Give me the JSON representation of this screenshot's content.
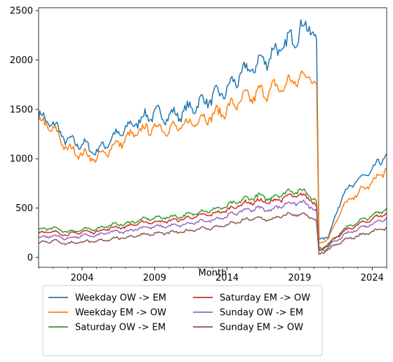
{
  "chart_data": {
    "type": "line",
    "title": "",
    "xlabel": "Month",
    "ylabel": "",
    "x_range": [
      "2001-01",
      "2025-01"
    ],
    "ylim": [
      -100,
      2530
    ],
    "grid": false,
    "legend_position": "below",
    "x_ticks": [
      {
        "label": "2004",
        "value": "2004-01"
      },
      {
        "label": "2009",
        "value": "2009-01"
      },
      {
        "label": "2014",
        "value": "2014-01"
      },
      {
        "label": "2019",
        "value": "2019-01"
      },
      {
        "label": "2024",
        "value": "2024-01"
      }
    ],
    "y_ticks": [
      0,
      500,
      1000,
      1500,
      2000,
      2500
    ],
    "series": [
      {
        "name": "Weekday OW -> EM",
        "color": "#1f77b4",
        "points": [
          [
            "2001-01",
            1430
          ],
          [
            "2002-01",
            1350
          ],
          [
            "2003-01",
            1180
          ],
          [
            "2004-01",
            1150
          ],
          [
            "2005-01",
            1070
          ],
          [
            "2006-01",
            1200
          ],
          [
            "2007-01",
            1300
          ],
          [
            "2008-01",
            1400
          ],
          [
            "2009-01",
            1460
          ],
          [
            "2010-01",
            1430
          ],
          [
            "2011-01",
            1470
          ],
          [
            "2012-01",
            1560
          ],
          [
            "2013-01",
            1620
          ],
          [
            "2014-01",
            1700
          ],
          [
            "2015-01",
            1860
          ],
          [
            "2016-01",
            1950
          ],
          [
            "2017-01",
            2050
          ],
          [
            "2018-01",
            2150
          ],
          [
            "2019-01",
            2300
          ],
          [
            "2019-10",
            2350
          ],
          [
            "2020-03",
            2200
          ],
          [
            "2020-05",
            180
          ],
          [
            "2021-01",
            220
          ],
          [
            "2022-01",
            650
          ],
          [
            "2023-01",
            780
          ],
          [
            "2024-01",
            880
          ],
          [
            "2025-01",
            1050
          ]
        ]
      },
      {
        "name": "Weekday EM -> OW",
        "color": "#ff7f0e",
        "points": [
          [
            "2001-01",
            1380
          ],
          [
            "2002-01",
            1300
          ],
          [
            "2003-01",
            1100
          ],
          [
            "2004-01",
            1050
          ],
          [
            "2005-01",
            1000
          ],
          [
            "2006-01",
            1110
          ],
          [
            "2007-01",
            1200
          ],
          [
            "2008-01",
            1280
          ],
          [
            "2009-01",
            1320
          ],
          [
            "2010-01",
            1300
          ],
          [
            "2011-01",
            1330
          ],
          [
            "2012-01",
            1400
          ],
          [
            "2013-01",
            1440
          ],
          [
            "2014-01",
            1500
          ],
          [
            "2015-01",
            1600
          ],
          [
            "2016-01",
            1650
          ],
          [
            "2017-01",
            1700
          ],
          [
            "2018-01",
            1740
          ],
          [
            "2019-01",
            1820
          ],
          [
            "2019-10",
            1850
          ],
          [
            "2020-03",
            1760
          ],
          [
            "2020-05",
            140
          ],
          [
            "2021-01",
            200
          ],
          [
            "2022-01",
            520
          ],
          [
            "2023-01",
            650
          ],
          [
            "2024-01",
            760
          ],
          [
            "2025-01",
            900
          ]
        ]
      },
      {
        "name": "Saturday OW -> EM",
        "color": "#2ca02c",
        "points": [
          [
            "2001-01",
            280
          ],
          [
            "2002-01",
            300
          ],
          [
            "2003-01",
            260
          ],
          [
            "2004-01",
            280
          ],
          [
            "2005-01",
            290
          ],
          [
            "2006-01",
            330
          ],
          [
            "2007-01",
            340
          ],
          [
            "2008-01",
            380
          ],
          [
            "2009-01",
            400
          ],
          [
            "2010-01",
            410
          ],
          [
            "2011-01",
            420
          ],
          [
            "2012-01",
            460
          ],
          [
            "2013-01",
            480
          ],
          [
            "2014-01",
            520
          ],
          [
            "2015-01",
            580
          ],
          [
            "2016-01",
            620
          ],
          [
            "2017-01",
            600
          ],
          [
            "2018-01",
            660
          ],
          [
            "2019-01",
            680
          ],
          [
            "2019-10",
            640
          ],
          [
            "2020-03",
            560
          ],
          [
            "2020-05",
            80
          ],
          [
            "2021-01",
            140
          ],
          [
            "2022-01",
            280
          ],
          [
            "2023-01",
            360
          ],
          [
            "2024-01",
            420
          ],
          [
            "2025-01",
            500
          ]
        ]
      },
      {
        "name": "Saturday EM -> OW",
        "color": "#d62728",
        "points": [
          [
            "2001-01",
            250
          ],
          [
            "2002-01",
            260
          ],
          [
            "2003-01",
            230
          ],
          [
            "2004-01",
            260
          ],
          [
            "2005-01",
            260
          ],
          [
            "2006-01",
            300
          ],
          [
            "2007-01",
            310
          ],
          [
            "2008-01",
            350
          ],
          [
            "2009-01",
            360
          ],
          [
            "2010-01",
            370
          ],
          [
            "2011-01",
            390
          ],
          [
            "2012-01",
            420
          ],
          [
            "2013-01",
            440
          ],
          [
            "2014-01",
            480
          ],
          [
            "2015-01",
            540
          ],
          [
            "2016-01",
            570
          ],
          [
            "2017-01",
            560
          ],
          [
            "2018-01",
            610
          ],
          [
            "2019-01",
            630
          ],
          [
            "2019-10",
            600
          ],
          [
            "2020-03",
            520
          ],
          [
            "2020-05",
            70
          ],
          [
            "2021-01",
            130
          ],
          [
            "2022-01",
            260
          ],
          [
            "2023-01",
            330
          ],
          [
            "2024-01",
            390
          ],
          [
            "2025-01",
            450
          ]
        ]
      },
      {
        "name": "Sunday OW -> EM",
        "color": "#9467bd",
        "points": [
          [
            "2001-01",
            200
          ],
          [
            "2002-01",
            220
          ],
          [
            "2003-01",
            190
          ],
          [
            "2004-01",
            220
          ],
          [
            "2005-01",
            220
          ],
          [
            "2006-01",
            260
          ],
          [
            "2007-01",
            260
          ],
          [
            "2008-01",
            300
          ],
          [
            "2009-01",
            310
          ],
          [
            "2010-01",
            320
          ],
          [
            "2011-01",
            330
          ],
          [
            "2012-01",
            360
          ],
          [
            "2013-01",
            380
          ],
          [
            "2014-01",
            420
          ],
          [
            "2015-01",
            470
          ],
          [
            "2016-01",
            500
          ],
          [
            "2017-01",
            480
          ],
          [
            "2018-01",
            540
          ],
          [
            "2019-01",
            560
          ],
          [
            "2019-10",
            520
          ],
          [
            "2020-03",
            460
          ],
          [
            "2020-05",
            50
          ],
          [
            "2021-01",
            110
          ],
          [
            "2022-01",
            220
          ],
          [
            "2023-01",
            290
          ],
          [
            "2024-01",
            340
          ],
          [
            "2025-01",
            400
          ]
        ]
      },
      {
        "name": "Sunday EM -> OW",
        "color": "#8c564b",
        "points": [
          [
            "2001-01",
            150
          ],
          [
            "2002-01",
            170
          ],
          [
            "2003-01",
            140
          ],
          [
            "2004-01",
            160
          ],
          [
            "2005-01",
            160
          ],
          [
            "2006-01",
            190
          ],
          [
            "2007-01",
            200
          ],
          [
            "2008-01",
            230
          ],
          [
            "2009-01",
            240
          ],
          [
            "2010-01",
            250
          ],
          [
            "2011-01",
            260
          ],
          [
            "2012-01",
            290
          ],
          [
            "2013-01",
            300
          ],
          [
            "2014-01",
            330
          ],
          [
            "2015-01",
            370
          ],
          [
            "2016-01",
            400
          ],
          [
            "2017-01",
            380
          ],
          [
            "2018-01",
            430
          ],
          [
            "2019-01",
            440
          ],
          [
            "2019-10",
            410
          ],
          [
            "2020-03",
            360
          ],
          [
            "2020-05",
            30
          ],
          [
            "2021-01",
            80
          ],
          [
            "2022-01",
            170
          ],
          [
            "2023-01",
            220
          ],
          [
            "2024-01",
            260
          ],
          [
            "2025-01",
            300
          ]
        ]
      }
    ]
  }
}
